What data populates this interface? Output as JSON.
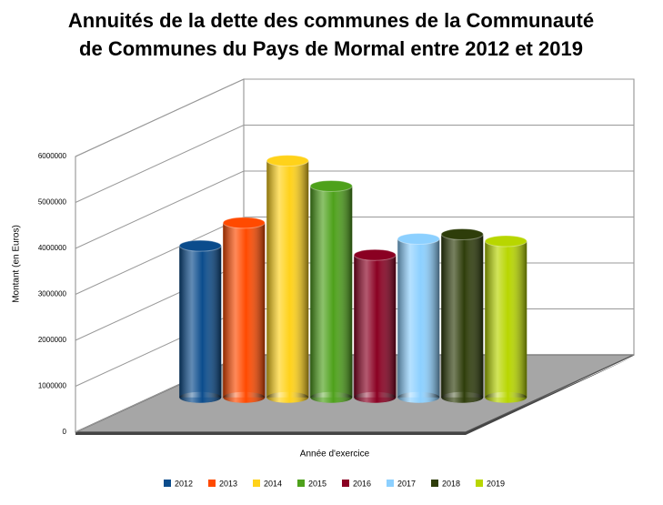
{
  "chart_data": {
    "type": "bar3d",
    "title": [
      "Annuités de la dette des communes de la Communauté",
      "de Communes du Pays de Mormal entre 2012 et 2019"
    ],
    "y_label": "Montant (en Euros)",
    "x_label": "Année d'exercice",
    "ylim": [
      0,
      6000000
    ],
    "yticks": [
      0,
      1000000,
      2000000,
      3000000,
      4000000,
      5000000,
      6000000
    ],
    "grid": true,
    "legend": "bottom",
    "series": [
      {
        "name": "2012",
        "color": "#0b4c8c",
        "values": [
          3300000
        ]
      },
      {
        "name": "2013",
        "color": "#ff4a00",
        "values": [
          3800000
        ]
      },
      {
        "name": "2014",
        "color": "#ffd21a",
        "values": [
          5150000
        ]
      },
      {
        "name": "2015",
        "color": "#4ea11b",
        "values": [
          4600000
        ]
      },
      {
        "name": "2016",
        "color": "#8a0022",
        "values": [
          3100000
        ]
      },
      {
        "name": "2017",
        "color": "#8cd0ff",
        "values": [
          3450000
        ]
      },
      {
        "name": "2018",
        "color": "#2e3d0a",
        "values": [
          3550000
        ]
      },
      {
        "name": "2019",
        "color": "#b8d600",
        "values": [
          3400000
        ]
      }
    ]
  }
}
